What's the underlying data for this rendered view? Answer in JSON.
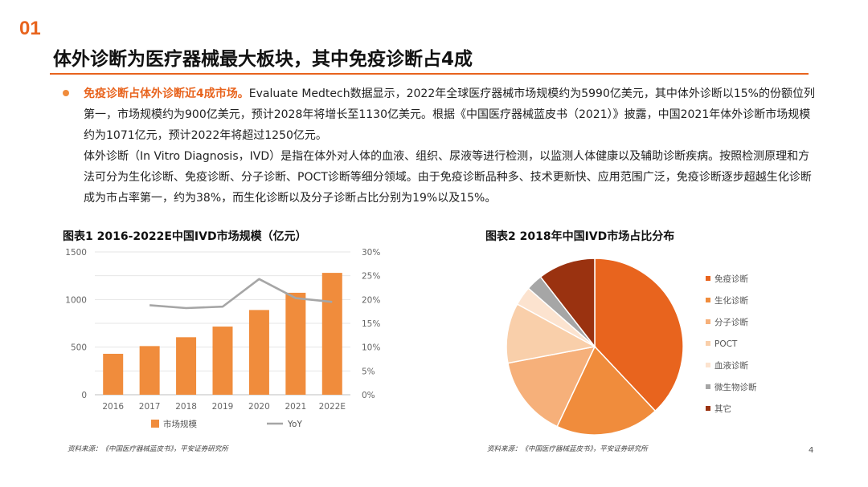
{
  "header": {
    "section_number": "01",
    "title": "体外诊断为医疗器械最大板块，其中免疫诊断占4成"
  },
  "body": {
    "bullet_highlight": "免疫诊断占体外诊断近4成市场。",
    "bullet_text": "Evaluate Medtech数据显示，2022年全球医疗器械市场规模约为5990亿美元，其中体外诊断以15%的份额位列第一，市场规模约为900亿美元，预计2028年将增长至1130亿美元。根据《中国医疗器械蓝皮书（2021）》披露，中国2021年体外诊断市场规模约为1071亿元，预计2022年将超过1250亿元。",
    "paragraph2": "体外诊断（In Vitro Diagnosis，IVD）是指在体外对人体的血液、组织、尿液等进行检测，以监测人体健康以及辅助诊断疾病。按照检测原理和方法可分为生化诊断、免疫诊断、分子诊断、POCT诊断等细分领域。由于免疫诊断品种多、技术更新快、应用范围广泛，免疫诊断逐步超越生化诊断成为市占率第一，约为38%，而生化诊断以及分子诊断占比分别为19%以及15%。"
  },
  "chart1": {
    "title": "图表1 2016-2022E中国IVD市场规模（亿元）",
    "source": "资料来源：《中国医疗器械蓝皮书》，平安证券研究所"
  },
  "chart2": {
    "title": "图表2 2018年中国IVD市场占比分布",
    "source": "资料来源：《中国医疗器械蓝皮书》，平安证券研究所"
  },
  "page_number": "4",
  "chart_data": [
    {
      "type": "bar",
      "categories": [
        "2016",
        "2017",
        "2018",
        "2019",
        "2020",
        "2021",
        "2022E"
      ],
      "series": [
        {
          "name": "市场规模",
          "chart": "bar",
          "axis": "left",
          "color": "#f08c3c",
          "values": [
            430,
            511,
            604,
            716,
            890,
            1071,
            1280
          ]
        },
        {
          "name": "YoY",
          "chart": "line",
          "axis": "right",
          "color": "#a6a6a6",
          "values": [
            null,
            18.8,
            18.2,
            18.5,
            24.3,
            20.3,
            19.5
          ]
        }
      ],
      "yticks_left": [
        "0",
        "500",
        "1000",
        "1500"
      ],
      "yticks_right": [
        "0%",
        "5%",
        "10%",
        "15%",
        "20%",
        "25%",
        "30%"
      ],
      "ylim_left": [
        0,
        1500
      ],
      "ylim_right": [
        0,
        30
      ],
      "grid": true,
      "legend_position": "bottom"
    },
    {
      "type": "pie",
      "labels": [
        "免疫诊断",
        "生化诊断",
        "分子诊断",
        "POCT",
        "血液诊断",
        "微生物诊断",
        "其它"
      ],
      "values": [
        38,
        19,
        15,
        11,
        3.5,
        3,
        10.5
      ],
      "colors": [
        "#e8641e",
        "#f08c3c",
        "#f6b07a",
        "#f9cfaa",
        "#fce3cf",
        "#a6a6a6",
        "#9a3210"
      ],
      "legend_position": "right"
    }
  ]
}
